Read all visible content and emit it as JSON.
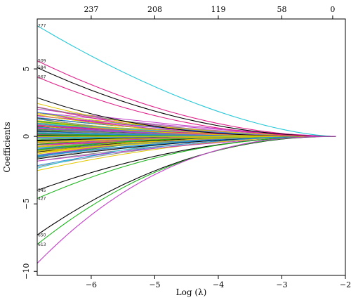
{
  "chart_data": {
    "type": "line",
    "title": "",
    "xlabel": "Log (λ)",
    "ylabel": "Coefficients",
    "xlim": [
      -6.85,
      -2.0
    ],
    "ylim": [
      -10.3,
      8.7
    ],
    "x_ticks": [
      -6,
      -5,
      -4,
      -3,
      -2
    ],
    "y_ticks": [
      -10,
      -5,
      0,
      5
    ],
    "top_axis_label_values": [
      "237",
      "208",
      "119",
      "58",
      "0"
    ],
    "top_axis_positions": [
      -6.0,
      -5.0,
      -4.0,
      -3.0,
      -2.2
    ],
    "x_end": -2.15,
    "colors": [
      "#000000",
      "#e0218a",
      "#21b521",
      "#2b8fd8",
      "#28c8d8",
      "#c23fc8",
      "#e3c800",
      "#888888"
    ],
    "grid": false,
    "legend": "none",
    "visible_path_labels": [
      "277",
      "509",
      "584",
      "567",
      "650",
      "613",
      "545",
      "427"
    ],
    "highlighted_paths": [
      {
        "end_value": 8.2,
        "k": 1.6,
        "color": "#28c8d8",
        "label": "277"
      },
      {
        "end_value": 5.6,
        "k": 1.9,
        "color": "#e0218a",
        "label": "509"
      },
      {
        "end_value": 5.1,
        "k": 2.0,
        "color": "#000000",
        "label": "584"
      },
      {
        "end_value": 4.4,
        "k": 2.1,
        "color": "#e0218a",
        "label": "567"
      },
      {
        "end_value": -4.0,
        "k": 2.0,
        "color": "#000000",
        "label": "545"
      },
      {
        "end_value": -4.6,
        "k": 2.1,
        "color": "#21b521",
        "label": "427"
      },
      {
        "end_value": -7.3,
        "k": 2.1,
        "color": "#000000",
        "label": "650"
      },
      {
        "end_value": -8.0,
        "k": 2.2,
        "color": "#21b521",
        "label": "613"
      },
      {
        "end_value": -9.4,
        "k": 2.4,
        "color": "#c23fc8",
        "label": ""
      }
    ],
    "bulk_paths_count": 150,
    "bulk_end_value_range": [
      -3.0,
      3.0
    ]
  }
}
